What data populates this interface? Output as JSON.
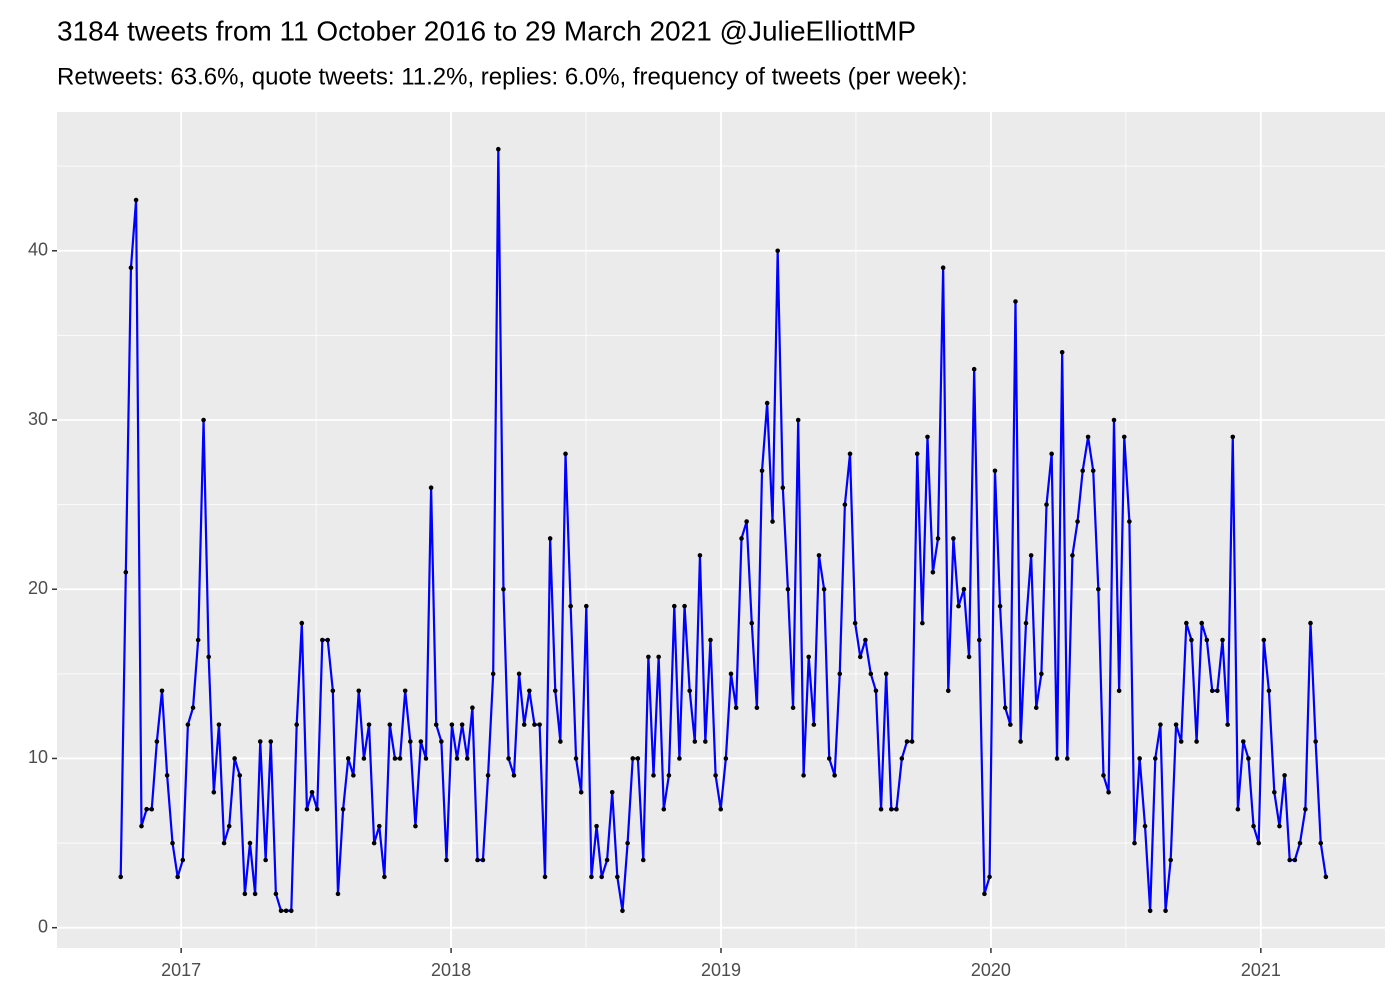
{
  "chart_data": {
    "type": "line",
    "title": "3184 tweets from 11 October 2016 to 29 March 2021 @JulieElliottMP",
    "subtitle": "Retweets: 63.6%, quote tweets: 11.2%, replies: 6.0%, frequency of tweets (per week):",
    "x": [
      2016.776,
      2016.795,
      2016.814,
      2016.833,
      2016.853,
      2016.872,
      2016.891,
      2016.91,
      2016.929,
      2016.948,
      2016.968,
      2016.987,
      2017.006,
      2017.025,
      2017.044,
      2017.063,
      2017.083,
      2017.102,
      2017.121,
      2017.14,
      2017.159,
      2017.178,
      2017.198,
      2017.217,
      2017.236,
      2017.255,
      2017.274,
      2017.293,
      2017.313,
      2017.332,
      2017.351,
      2017.37,
      2017.389,
      2017.408,
      2017.428,
      2017.447,
      2017.466,
      2017.485,
      2017.504,
      2017.523,
      2017.543,
      2017.562,
      2017.581,
      2017.6,
      2017.619,
      2017.638,
      2017.658,
      2017.677,
      2017.696,
      2017.715,
      2017.734,
      2017.753,
      2017.773,
      2017.792,
      2017.811,
      2017.83,
      2017.849,
      2017.868,
      2017.888,
      2017.907,
      2017.926,
      2017.945,
      2017.964,
      2017.983,
      2018.003,
      2018.022,
      2018.041,
      2018.06,
      2018.079,
      2018.098,
      2018.118,
      2018.137,
      2018.156,
      2018.175,
      2018.194,
      2018.213,
      2018.233,
      2018.252,
      2018.271,
      2018.29,
      2018.309,
      2018.328,
      2018.348,
      2018.367,
      2018.386,
      2018.405,
      2018.424,
      2018.443,
      2018.463,
      2018.482,
      2018.501,
      2018.52,
      2018.539,
      2018.558,
      2018.578,
      2018.597,
      2018.616,
      2018.635,
      2018.654,
      2018.673,
      2018.692,
      2018.712,
      2018.731,
      2018.75,
      2018.769,
      2018.788,
      2018.807,
      2018.827,
      2018.846,
      2018.865,
      2018.884,
      2018.903,
      2018.922,
      2018.942,
      2018.961,
      2018.98,
      2018.999,
      2019.018,
      2019.037,
      2019.056,
      2019.076,
      2019.095,
      2019.114,
      2019.133,
      2019.152,
      2019.171,
      2019.191,
      2019.21,
      2019.229,
      2019.248,
      2019.267,
      2019.286,
      2019.306,
      2019.325,
      2019.344,
      2019.363,
      2019.382,
      2019.401,
      2019.421,
      2019.44,
      2019.459,
      2019.478,
      2019.497,
      2019.516,
      2019.535,
      2019.555,
      2019.574,
      2019.593,
      2019.612,
      2019.631,
      2019.65,
      2019.67,
      2019.689,
      2019.708,
      2019.727,
      2019.746,
      2019.765,
      2019.785,
      2019.804,
      2019.823,
      2019.842,
      2019.861,
      2019.88,
      2019.9,
      2019.919,
      2019.938,
      2019.957,
      2019.976,
      2019.995,
      2020.015,
      2020.034,
      2020.053,
      2020.072,
      2020.091,
      2020.11,
      2020.13,
      2020.149,
      2020.168,
      2020.187,
      2020.206,
      2020.225,
      2020.245,
      2020.264,
      2020.283,
      2020.302,
      2020.321,
      2020.34,
      2020.36,
      2020.379,
      2020.398,
      2020.417,
      2020.436,
      2020.456,
      2020.475,
      2020.494,
      2020.513,
      2020.532,
      2020.551,
      2020.571,
      2020.59,
      2020.609,
      2020.628,
      2020.647,
      2020.666,
      2020.686,
      2020.705,
      2020.724,
      2020.743,
      2020.762,
      2020.781,
      2020.8,
      2020.82,
      2020.839,
      2020.858,
      2020.877,
      2020.896,
      2020.915,
      2020.935,
      2020.954,
      2020.973,
      2020.992,
      2021.011,
      2021.03,
      2021.05,
      2021.069,
      2021.088,
      2021.107,
      2021.126,
      2021.145,
      2021.165,
      2021.184,
      2021.203,
      2021.222,
      2021.241
    ],
    "values": [
      3,
      21,
      39,
      43,
      6,
      7,
      7,
      11,
      14,
      9,
      5,
      3,
      4,
      12,
      13,
      17,
      30,
      16,
      8,
      12,
      5,
      6,
      10,
      9,
      2,
      5,
      2,
      11,
      4,
      11,
      2,
      1,
      1,
      1,
      12,
      18,
      7,
      8,
      7,
      17,
      17,
      14,
      2,
      7,
      10,
      9,
      14,
      10,
      12,
      5,
      6,
      3,
      12,
      10,
      10,
      14,
      11,
      6,
      11,
      10,
      26,
      12,
      11,
      4,
      12,
      10,
      12,
      10,
      13,
      4,
      4,
      9,
      15,
      46,
      20,
      10,
      9,
      15,
      12,
      14,
      12,
      12,
      3,
      23,
      14,
      11,
      28,
      19,
      10,
      8,
      19,
      3,
      6,
      3,
      4,
      8,
      3,
      1,
      5,
      10,
      10,
      4,
      16,
      9,
      16,
      7,
      9,
      19,
      10,
      19,
      14,
      11,
      22,
      11,
      17,
      9,
      7,
      10,
      15,
      13,
      23,
      24,
      18,
      13,
      27,
      31,
      24,
      40,
      26,
      20,
      13,
      30,
      9,
      16,
      12,
      22,
      20,
      10,
      9,
      15,
      25,
      28,
      18,
      16,
      17,
      15,
      14,
      7,
      15,
      7,
      7,
      10,
      11,
      11,
      28,
      18,
      29,
      21,
      23,
      39,
      14,
      23,
      19,
      20,
      16,
      33,
      17,
      2,
      3,
      27,
      19,
      13,
      12,
      37,
      11,
      18,
      22,
      13,
      15,
      25,
      28,
      10,
      34,
      10,
      22,
      24,
      27,
      29,
      27,
      20,
      9,
      8,
      30,
      14,
      29,
      24,
      5,
      10,
      6,
      1,
      10,
      12,
      1,
      4,
      12,
      11,
      18,
      17,
      11,
      18,
      17,
      14,
      14,
      17,
      12,
      29,
      7,
      11,
      10,
      6,
      5,
      17,
      14,
      8,
      6,
      9,
      4,
      4,
      5,
      7,
      18,
      11,
      5,
      3
    ],
    "color": "#0000ff",
    "point_color": "#000000",
    "xlim": [
      2016.54,
      2021.46
    ],
    "xticks": [
      2017,
      2018,
      2019,
      2020,
      2021
    ],
    "ylim": [
      -1.2,
      48.2
    ],
    "yticks": [
      0,
      10,
      20,
      30,
      40
    ],
    "grid": true
  }
}
